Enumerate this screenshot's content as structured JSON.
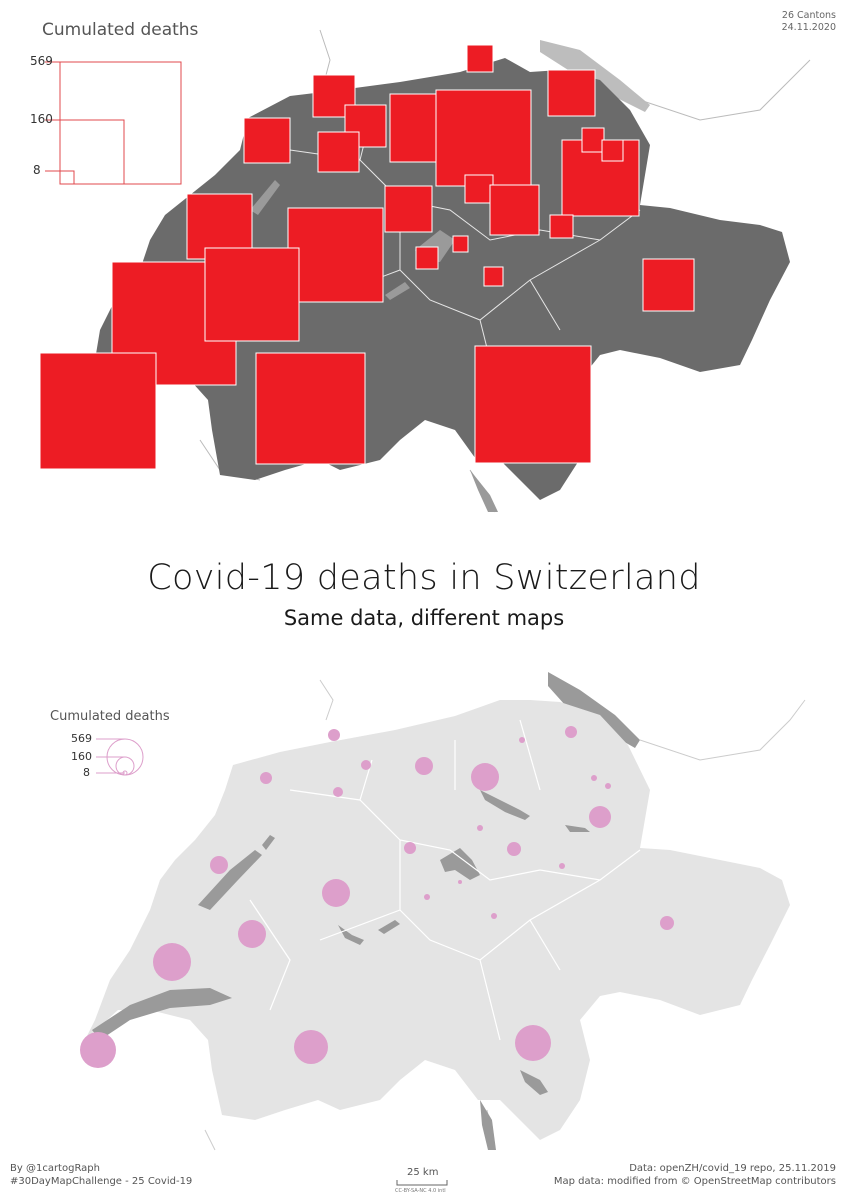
{
  "corner": {
    "line1": "26 Cantons",
    "line2": "24.11.2020"
  },
  "title": "Covid-19 deaths in Switzerland",
  "subtitle": "Same data, different maps",
  "legend": {
    "title": "Cumulated deaths",
    "values": [
      "569",
      "160",
      "8"
    ]
  },
  "footer": {
    "left_line1": "By @1cartogRaph",
    "left_line2": "#30DayMapChallenge - 25 Covid-19",
    "right_line1": "Data: openZH/covid_19 repo, 25.11.2019",
    "right_line2": "Map data: modified from © OpenStreetMap contributors",
    "scale_label": "25 km",
    "license": "CC-BY-SA-NC 4.0 intl"
  },
  "colors": {
    "top_land": "#6b6b6b",
    "top_square": "#ed1c24",
    "bottom_land": "#e4e4e4",
    "lake": "#9a9a9a",
    "bottom_circle": "#dd9fcb"
  },
  "chart_data": {
    "type": "proportional-symbol-map",
    "measure": "Cumulated deaths",
    "legend_values": [
      569,
      160,
      8
    ]
  }
}
